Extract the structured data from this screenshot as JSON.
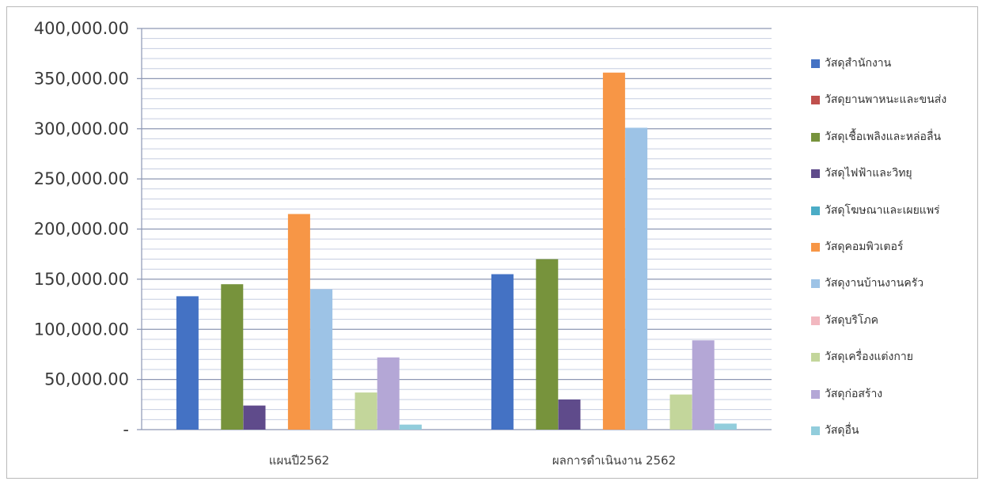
{
  "chart_data": {
    "type": "bar",
    "categories": [
      "แผนปี2562",
      "ผลการดำเนินงาน 2562"
    ],
    "ylim": [
      0,
      400000
    ],
    "y_ticks": [
      "-",
      "50,000.00",
      "100,000.00",
      "150,000.00",
      "200,000.00",
      "250,000.00",
      "300,000.00",
      "350,000.00",
      "400,000.00"
    ],
    "grid": true,
    "legend_position": "right",
    "series": [
      {
        "name": "วัสดุสำนักงาน",
        "color": "#4472c4",
        "values": [
          133000,
          155000
        ]
      },
      {
        "name": "วัสดุยานพาหนะและขนส่ง",
        "color": "#c0504d",
        "values": [
          0,
          0
        ]
      },
      {
        "name": "วัสดุเชื้อเพลิงและหล่อลื่น",
        "color": "#77933c",
        "values": [
          145000,
          170000
        ]
      },
      {
        "name": "วัสดุไฟฟ้าและวิทยุ",
        "color": "#5f4b8b",
        "values": [
          24000,
          30000
        ]
      },
      {
        "name": "วัสดุโฆษณาและเผยแพร่",
        "color": "#4bacc6",
        "values": [
          0,
          0
        ]
      },
      {
        "name": "วัสดุคอมพิวเตอร์",
        "color": "#f79646",
        "values": [
          215000,
          356000
        ]
      },
      {
        "name": "วัสดุงานบ้านงานครัว",
        "color": "#9dc3e6",
        "values": [
          140000,
          301000
        ]
      },
      {
        "name": "วัสดุบริโภค",
        "color": "#f2b8c0",
        "values": [
          0,
          0
        ]
      },
      {
        "name": "วัสดุเครื่องแต่งกาย",
        "color": "#c3d69b",
        "values": [
          37000,
          35000
        ]
      },
      {
        "name": "วัสดุก่อสร้าง",
        "color": "#b4a7d6",
        "values": [
          72000,
          89000
        ]
      },
      {
        "name": "วัสดุอื่น",
        "color": "#92cddc",
        "values": [
          5000,
          6000
        ]
      }
    ]
  }
}
